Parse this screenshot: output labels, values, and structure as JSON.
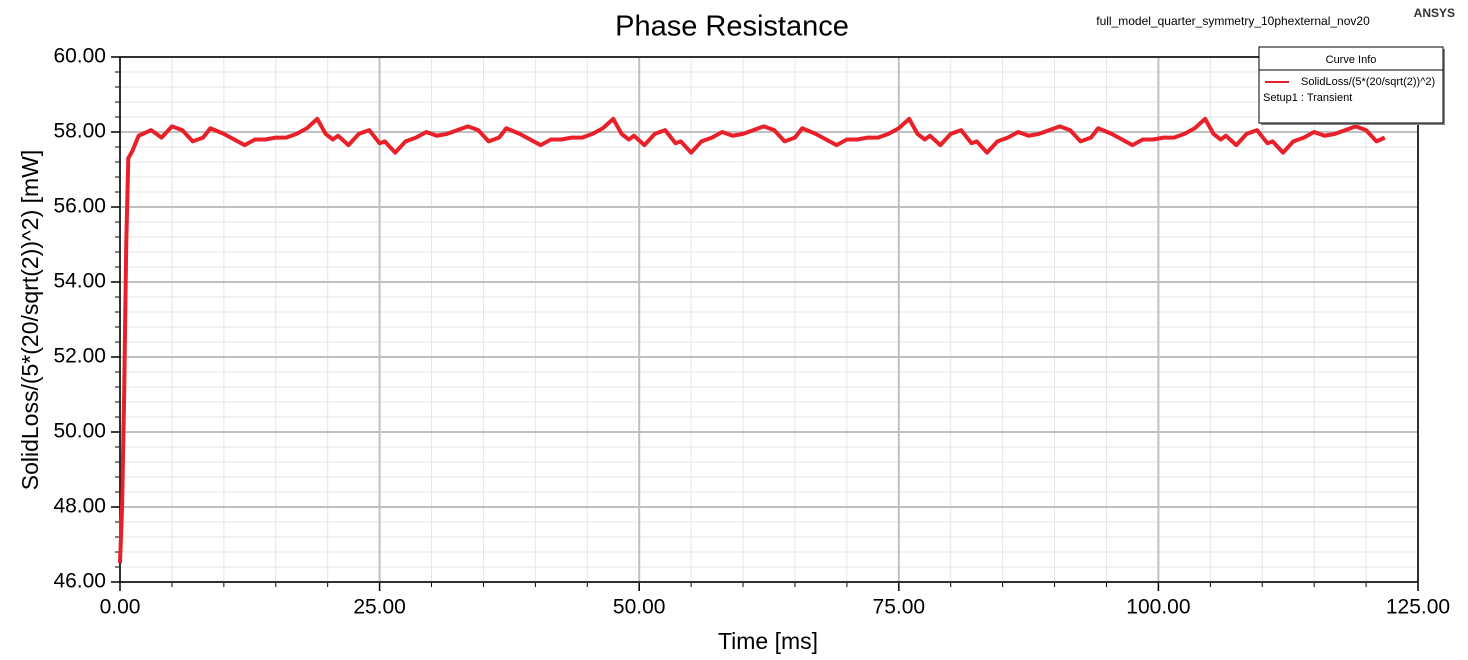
{
  "chart_data": {
    "type": "line",
    "title": "Phase Resistance",
    "subtitle": "full_model_quarter_symmetry_10phexternal_nov20",
    "brand": "ANSYS",
    "x_label": "Time [ms]",
    "y_label": "SolidLoss/(5*(20/sqrt(2))^2) [mW]",
    "legend_title": "Curve Info",
    "legend_note": "Setup1 : Transient",
    "legend_position": "upper right",
    "grid": true,
    "xlim": [
      0,
      125
    ],
    "ylim": [
      46,
      60
    ],
    "xticks": [
      {
        "value": 0,
        "label": "0.00"
      },
      {
        "value": 25,
        "label": "25.00"
      },
      {
        "value": 50,
        "label": "50.00"
      },
      {
        "value": 75,
        "label": "75.00"
      },
      {
        "value": 100,
        "label": "100.00"
      },
      {
        "value": 125,
        "label": "125.00"
      }
    ],
    "yticks": [
      {
        "value": 46,
        "label": "46.00"
      },
      {
        "value": 48,
        "label": "48.00"
      },
      {
        "value": 50,
        "label": "50.00"
      },
      {
        "value": 52,
        "label": "52.00"
      },
      {
        "value": 54,
        "label": "54.00"
      },
      {
        "value": 56,
        "label": "56.00"
      },
      {
        "value": 58,
        "label": "58.00"
      },
      {
        "value": 60,
        "label": "60.00"
      }
    ],
    "x": [
      0,
      0.2,
      0.4,
      0.6,
      0.8,
      1.2,
      1.8,
      3,
      4,
      5,
      6,
      7,
      8,
      8.7,
      10,
      11,
      12,
      13,
      14,
      15,
      16,
      17,
      18,
      19,
      19.8,
      20.5,
      21,
      22,
      23,
      24,
      25,
      25.5,
      26.5,
      27.5,
      28.5,
      29.5,
      30.5,
      31.5,
      32.5,
      33.5,
      34.5,
      35.5,
      36.5,
      37.2,
      38.5,
      39.5,
      40.5,
      41.5,
      42.5,
      43.5,
      44.5,
      45.5,
      46.5,
      47.5,
      48.3,
      49,
      49.5,
      50.5,
      51.5,
      52.5,
      53.5,
      54,
      55,
      56,
      57,
      58,
      59,
      60,
      61,
      62,
      63,
      64,
      65,
      65.7,
      67,
      68,
      69,
      70,
      71,
      72,
      73,
      74,
      75,
      76,
      76.8,
      77.5,
      78,
      79,
      80,
      81,
      82,
      82.5,
      83.5,
      84.5,
      85.5,
      86.5,
      87.5,
      88.5,
      89.5,
      90.5,
      91.5,
      92.5,
      93.5,
      94.2,
      95.5,
      96.5,
      97.5,
      98.5,
      99.5,
      100.5,
      101.5,
      102.5,
      103.5,
      104.5,
      105.3,
      106,
      106.5,
      107.5,
      108.5,
      109.5,
      110.5,
      111,
      112,
      113,
      114,
      115,
      116,
      117,
      118,
      119,
      120,
      121,
      121.8
    ],
    "series": [
      {
        "name": "SolidLoss/(5*(20/sqrt(2))^2)",
        "color": "#e8202a",
        "values": [
          46.5,
          48,
          51,
          55,
          57.3,
          57.5,
          57.9,
          58.05,
          57.85,
          58.15,
          58.05,
          57.75,
          57.85,
          58.1,
          57.95,
          57.8,
          57.65,
          57.8,
          57.8,
          57.85,
          57.85,
          57.95,
          58.1,
          58.35,
          57.95,
          57.8,
          57.9,
          57.65,
          57.95,
          58.05,
          57.7,
          57.75,
          57.45,
          57.75,
          57.85,
          58.0,
          57.9,
          57.95,
          58.05,
          58.15,
          58.05,
          57.75,
          57.85,
          58.1,
          57.95,
          57.8,
          57.65,
          57.8,
          57.8,
          57.85,
          57.85,
          57.95,
          58.1,
          58.35,
          57.95,
          57.8,
          57.9,
          57.65,
          57.95,
          58.05,
          57.7,
          57.75,
          57.45,
          57.75,
          57.85,
          58.0,
          57.9,
          57.95,
          58.05,
          58.15,
          58.05,
          57.75,
          57.85,
          58.1,
          57.95,
          57.8,
          57.65,
          57.8,
          57.8,
          57.85,
          57.85,
          57.95,
          58.1,
          58.35,
          57.95,
          57.8,
          57.9,
          57.65,
          57.95,
          58.05,
          57.7,
          57.75,
          57.45,
          57.75,
          57.85,
          58.0,
          57.9,
          57.95,
          58.05,
          58.15,
          58.05,
          57.75,
          57.85,
          58.1,
          57.95,
          57.8,
          57.65,
          57.8,
          57.8,
          57.85,
          57.85,
          57.95,
          58.1,
          58.35,
          57.95,
          57.8,
          57.9,
          57.65,
          57.95,
          58.05,
          57.7,
          57.75,
          57.45,
          57.75,
          57.85,
          58.0,
          57.9,
          57.95,
          58.05,
          58.15,
          58.05,
          57.75,
          57.85
        ]
      }
    ]
  }
}
